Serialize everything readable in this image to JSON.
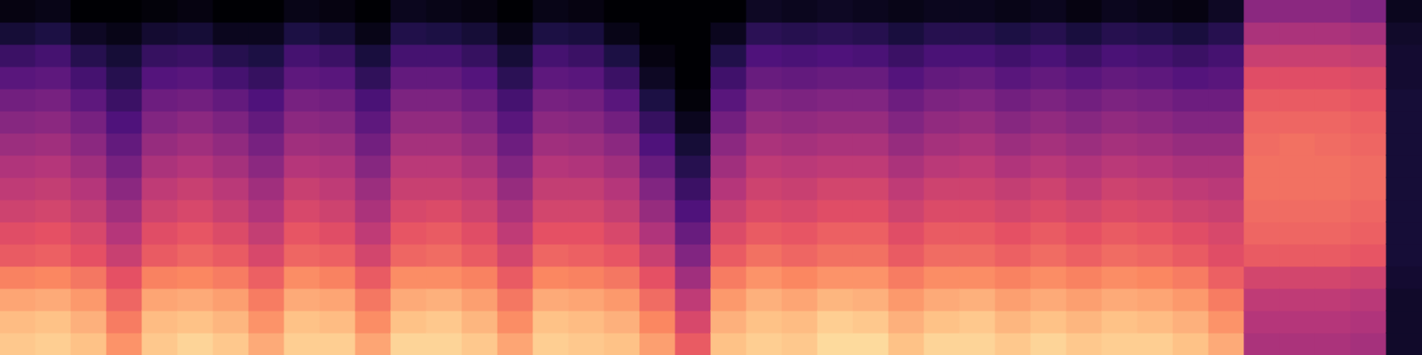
{
  "chart_data": {
    "type": "heatmap",
    "color": "magma",
    "tick_labels": false,
    "color_range": [
      -80,
      0
    ],
    "cells": [
      [
        -9,
        -11,
        -15,
        -21,
        -28,
        -31,
        -35,
        -38,
        -41,
        -45,
        -49,
        -53,
        -58,
        -64,
        -72,
        -78
      ],
      [
        -8,
        -10,
        -14,
        -20,
        -27,
        -30,
        -34,
        -37,
        -40,
        -44,
        -48,
        -52,
        -57,
        -62,
        -70,
        -77
      ],
      [
        -10,
        -13,
        -17,
        -23,
        -30,
        -33,
        -37,
        -40,
        -44,
        -48,
        -52,
        -57,
        -62,
        -68,
        -75,
        -80
      ],
      [
        -18,
        -22,
        -26,
        -30,
        -36,
        -40,
        -44,
        -48,
        -52,
        -56,
        -60,
        -64,
        -68,
        -72,
        -77,
        -80
      ],
      [
        -9,
        -11,
        -15,
        -21,
        -28,
        -31,
        -35,
        -38,
        -42,
        -46,
        -50,
        -54,
        -59,
        -65,
        -73,
        -79
      ],
      [
        -7,
        -10,
        -14,
        -20,
        -26,
        -29,
        -33,
        -36,
        -40,
        -44,
        -48,
        -53,
        -58,
        -64,
        -72,
        -78
      ],
      [
        -9,
        -12,
        -16,
        -22,
        -28,
        -32,
        -36,
        -39,
        -43,
        -47,
        -51,
        -56,
        -62,
        -68,
        -76,
        -80
      ],
      [
        -14,
        -18,
        -22,
        -27,
        -33,
        -37,
        -41,
        -44,
        -48,
        -52,
        -56,
        -60,
        -65,
        -70,
        -76,
        -80
      ],
      [
        -8,
        -10,
        -14,
        -19,
        -26,
        -29,
        -33,
        -36,
        -40,
        -44,
        -48,
        -52,
        -57,
        -62,
        -70,
        -77
      ],
      [
        -8,
        -11,
        -15,
        -21,
        -27,
        -31,
        -35,
        -38,
        -41,
        -45,
        -49,
        -53,
        -58,
        -64,
        -72,
        -78
      ],
      [
        -15,
        -19,
        -23,
        -28,
        -34,
        -38,
        -42,
        -45,
        -49,
        -53,
        -57,
        -61,
        -66,
        -71,
        -77,
        -80
      ],
      [
        -7,
        -10,
        -14,
        -19,
        -26,
        -29,
        -33,
        -36,
        -39,
        -43,
        -47,
        -51,
        -56,
        -62,
        -69,
        -76
      ],
      [
        -7,
        -9,
        -13,
        -19,
        -25,
        -28,
        -32,
        -36,
        -39,
        -43,
        -47,
        -51,
        -56,
        -62,
        -70,
        -77
      ],
      [
        -9,
        -12,
        -16,
        -21,
        -28,
        -31,
        -35,
        -38,
        -42,
        -46,
        -50,
        -54,
        -59,
        -65,
        -72,
        -78
      ],
      [
        -15,
        -19,
        -23,
        -28,
        -34,
        -38,
        -42,
        -46,
        -50,
        -54,
        -58,
        -62,
        -67,
        -72,
        -77,
        -80
      ],
      [
        -8,
        -10,
        -14,
        -20,
        -26,
        -30,
        -34,
        -37,
        -40,
        -44,
        -48,
        -52,
        -57,
        -62,
        -70,
        -77
      ],
      [
        -9,
        -11,
        -15,
        -21,
        -27,
        -30,
        -34,
        -37,
        -41,
        -45,
        -49,
        -53,
        -58,
        -64,
        -71,
        -78
      ],
      [
        -10,
        -13,
        -17,
        -23,
        -29,
        -33,
        -37,
        -40,
        -44,
        -48,
        -53,
        -58,
        -64,
        -70,
        -77,
        -80
      ],
      [
        -16,
        -20,
        -25,
        -30,
        -36,
        -41,
        -46,
        -50,
        -55,
        -60,
        -65,
        -70,
        -75,
        -78,
        -80,
        -80
      ],
      [
        -28,
        -33,
        -38,
        -44,
        -50,
        -55,
        -60,
        -64,
        -68,
        -72,
        -76,
        -79,
        -80,
        -80,
        -80,
        -80
      ],
      [
        -10,
        -13,
        -17,
        -22,
        -28,
        -32,
        -36,
        -40,
        -44,
        -48,
        -53,
        -58,
        -63,
        -69,
        -76,
        -80
      ],
      [
        -8,
        -10,
        -13,
        -18,
        -24,
        -28,
        -32,
        -35,
        -38,
        -42,
        -46,
        -50,
        -55,
        -60,
        -67,
        -75
      ],
      [
        -9,
        -11,
        -15,
        -20,
        -26,
        -29,
        -33,
        -36,
        -39,
        -43,
        -47,
        -51,
        -56,
        -61,
        -68,
        -76
      ],
      [
        -6,
        -8,
        -12,
        -18,
        -24,
        -27,
        -31,
        -34,
        -38,
        -42,
        -46,
        -50,
        -55,
        -60,
        -67,
        -75
      ],
      [
        -6,
        -9,
        -13,
        -18,
        -24,
        -27,
        -31,
        -34,
        -38,
        -42,
        -46,
        -50,
        -55,
        -61,
        -68,
        -76
      ],
      [
        -10,
        -13,
        -17,
        -22,
        -28,
        -31,
        -35,
        -38,
        -42,
        -46,
        -50,
        -54,
        -59,
        -64,
        -71,
        -77
      ],
      [
        -7,
        -10,
        -14,
        -19,
        -25,
        -28,
        -32,
        -35,
        -39,
        -43,
        -47,
        -51,
        -56,
        -61,
        -68,
        -76
      ],
      [
        -7,
        -9,
        -13,
        -19,
        -25,
        -28,
        -32,
        -35,
        -38,
        -42,
        -46,
        -50,
        -55,
        -61,
        -68,
        -76
      ],
      [
        -9,
        -12,
        -16,
        -21,
        -27,
        -30,
        -34,
        -37,
        -41,
        -45,
        -49,
        -53,
        -58,
        -63,
        -70,
        -77
      ],
      [
        -7,
        -10,
        -14,
        -19,
        -25,
        -28,
        -32,
        -35,
        -39,
        -43,
        -47,
        -51,
        -56,
        -61,
        -68,
        -76
      ],
      [
        -9,
        -12,
        -16,
        -21,
        -27,
        -30,
        -34,
        -38,
        -41,
        -45,
        -49,
        -53,
        -58,
        -64,
        -71,
        -78
      ],
      [
        -8,
        -10,
        -14,
        -19,
        -25,
        -28,
        -32,
        -35,
        -39,
        -43,
        -47,
        -51,
        -56,
        -61,
        -68,
        -76
      ],
      [
        -8,
        -11,
        -15,
        -20,
        -26,
        -29,
        -33,
        -36,
        -40,
        -44,
        -48,
        -52,
        -57,
        -62,
        -69,
        -77
      ],
      [
        -10,
        -13,
        -17,
        -22,
        -28,
        -31,
        -35,
        -38,
        -42,
        -46,
        -50,
        -54,
        -59,
        -64,
        -71,
        -78
      ],
      [
        -14,
        -18,
        -22,
        -27,
        -31,
        -33,
        -36,
        -39,
        -42,
        -46,
        -50,
        -54,
        -58,
        -62,
        -68,
        -75
      ],
      [
        -42,
        -40,
        -38,
        -34,
        -28,
        -26,
        -25,
        -24,
        -24,
        -25,
        -26,
        -28,
        -31,
        -36,
        -42,
        -48
      ],
      [
        -42,
        -40,
        -38,
        -34,
        -28,
        -26,
        -25,
        -24,
        -24,
        -24,
        -26,
        -28,
        -31,
        -36,
        -42,
        -48
      ],
      [
        -42,
        -40,
        -38,
        -34,
        -28,
        -26,
        -25,
        -24,
        -24,
        -25,
        -26,
        -28,
        -31,
        -36,
        -42,
        -48
      ],
      [
        -43,
        -41,
        -39,
        -35,
        -29,
        -27,
        -26,
        -25,
        -25,
        -26,
        -27,
        -29,
        -32,
        -37,
        -43,
        -50
      ],
      [
        -74,
        -74,
        -74,
        -73,
        -72,
        -72,
        -72,
        -72,
        -72,
        -72,
        -72,
        -72,
        -73,
        -73,
        -74,
        -76
      ]
    ]
  }
}
